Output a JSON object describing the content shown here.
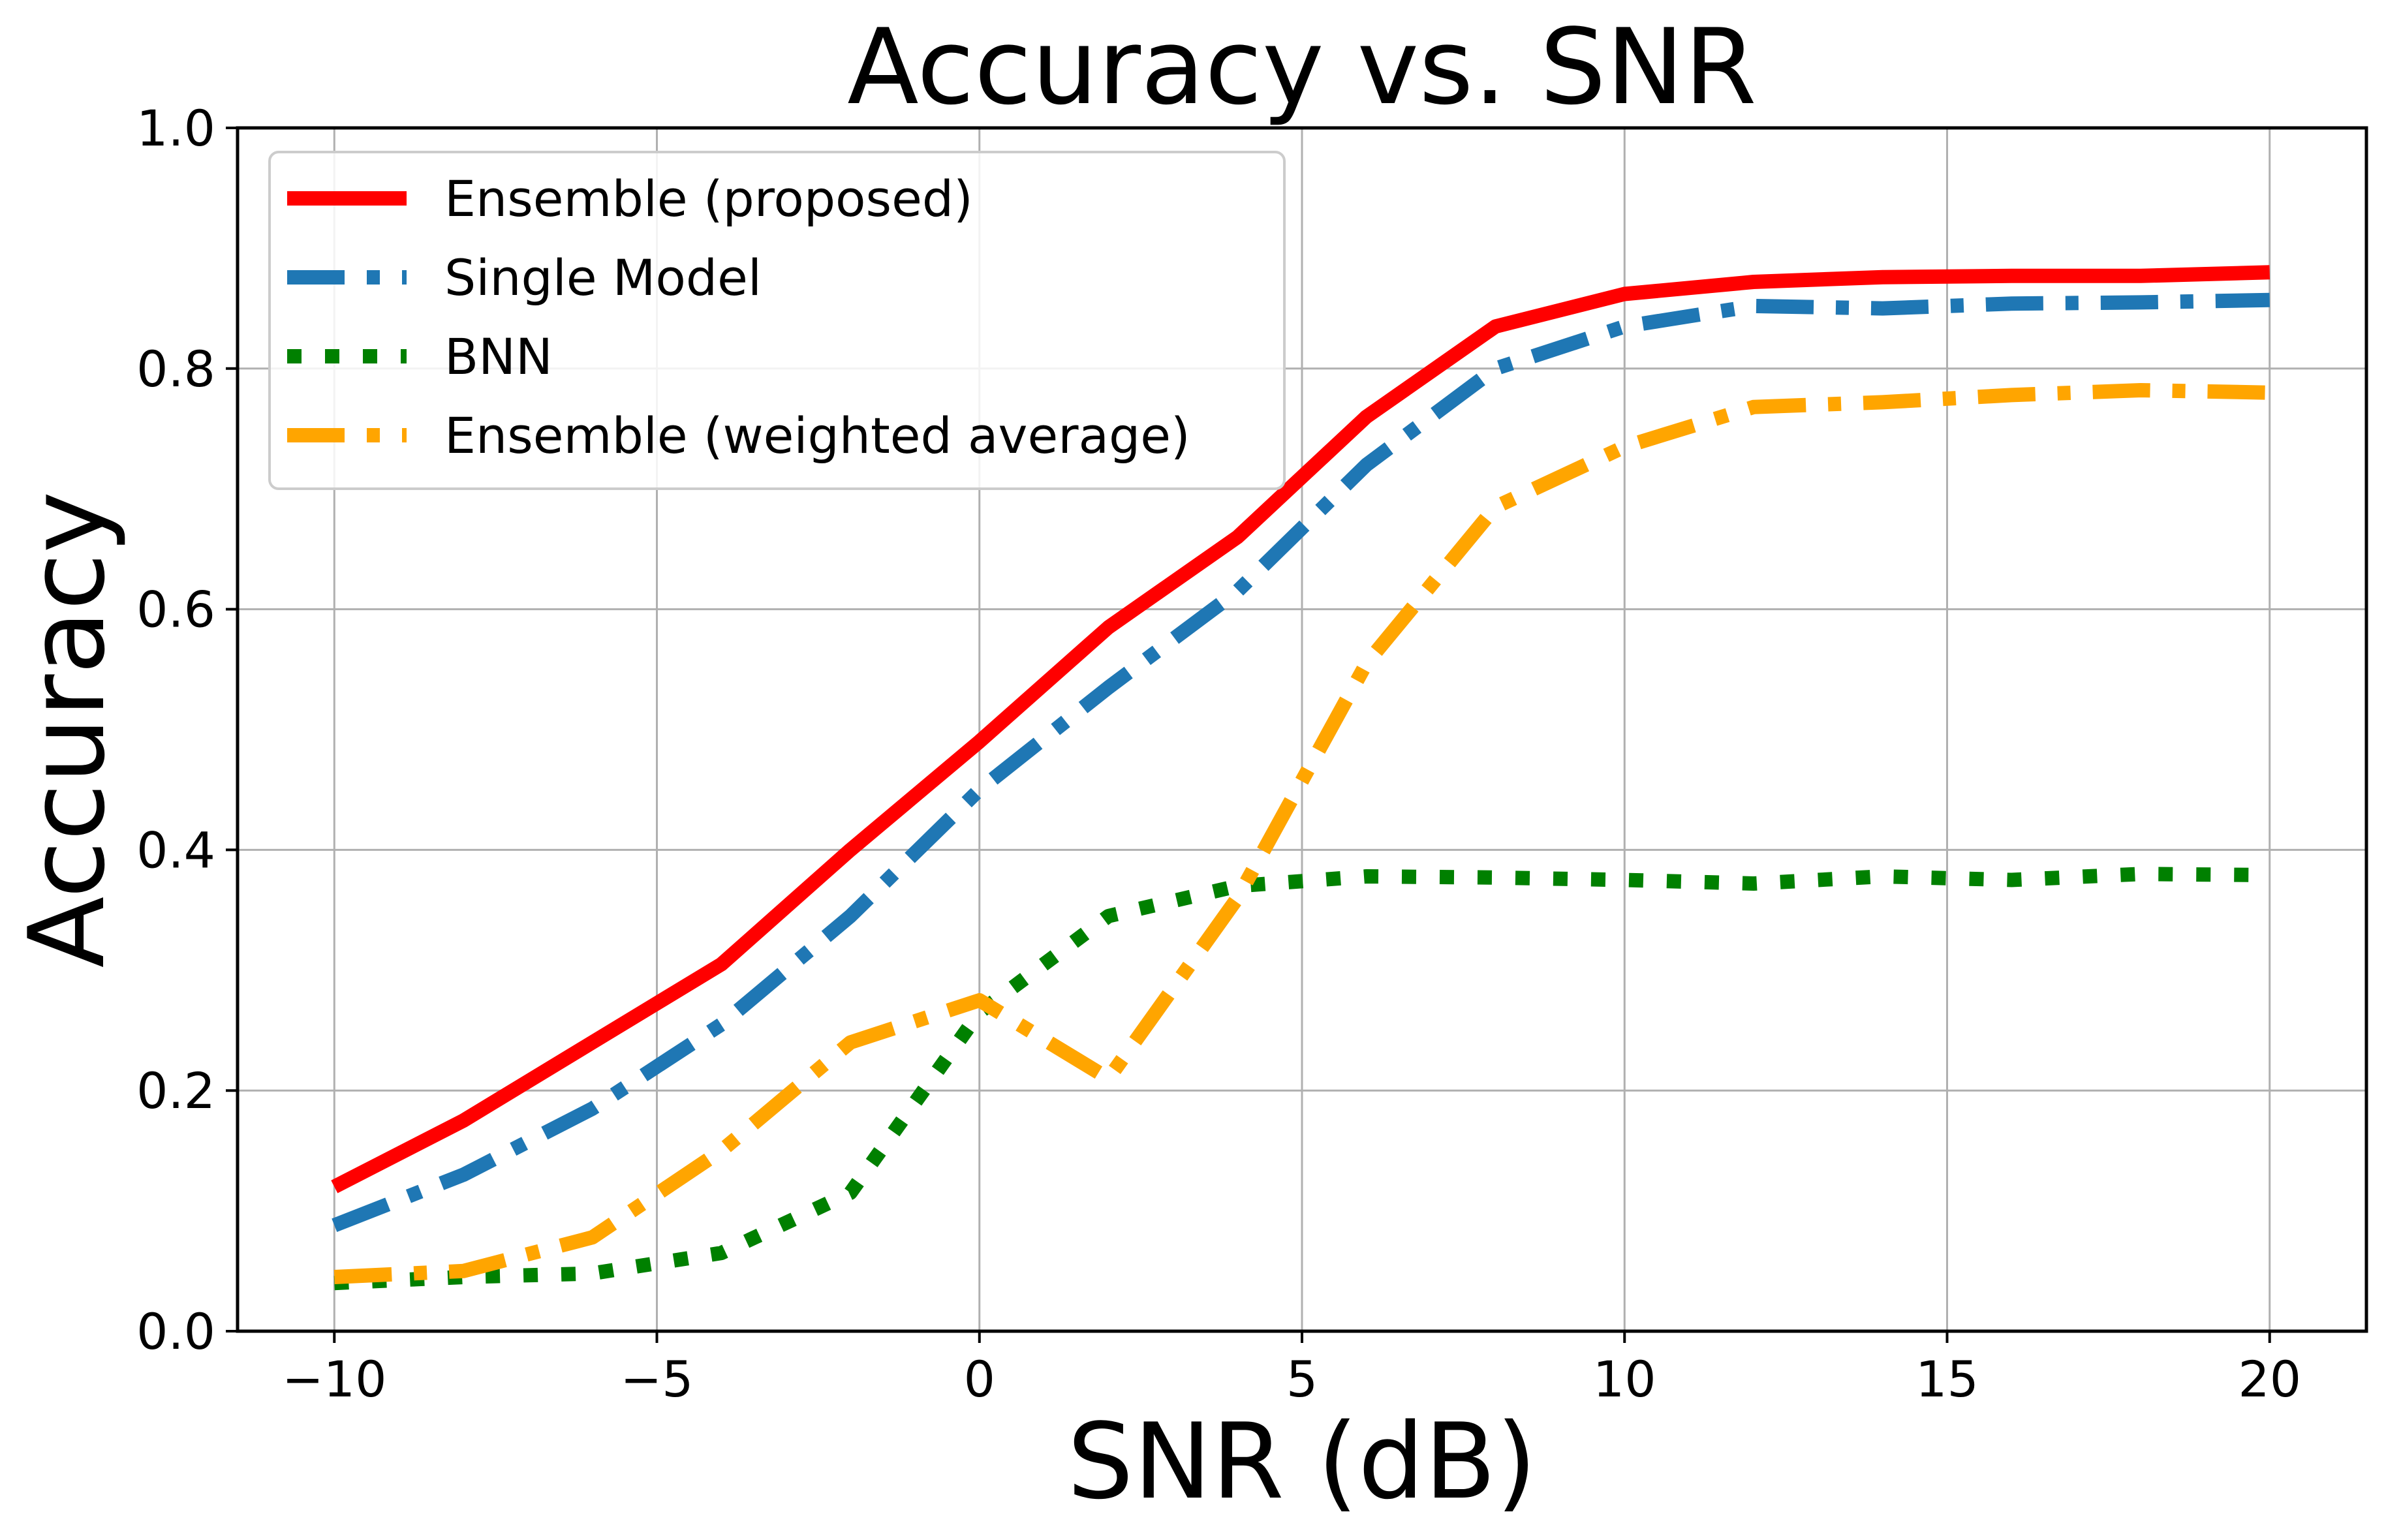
{
  "chart_data": {
    "type": "line",
    "title": "Accuracy vs. SNR",
    "xlabel": "SNR (dB)",
    "ylabel": "Accuracy",
    "xlim": [
      -11.5,
      21.5
    ],
    "ylim": [
      0.0,
      1.0
    ],
    "grid": true,
    "legend_position": "top-left",
    "x_ticks": [
      -10,
      -5,
      0,
      5,
      10,
      15,
      20
    ],
    "x_tick_labels": [
      "−10",
      "−5",
      "0",
      "5",
      "10",
      "15",
      "20"
    ],
    "y_ticks": [
      0.0,
      0.2,
      0.4,
      0.6,
      0.8,
      1.0
    ],
    "y_tick_labels": [
      "0.0",
      "0.2",
      "0.4",
      "0.6",
      "0.8",
      "1.0"
    ],
    "x": [
      -10,
      -8,
      -6,
      -4,
      -2,
      0,
      2,
      4,
      6,
      8,
      10,
      12,
      14,
      16,
      18,
      20
    ],
    "series": [
      {
        "name": "Ensemble (proposed)",
        "color": "#ff0000",
        "style": "solid",
        "values": [
          0.12,
          0.175,
          0.24,
          0.305,
          0.4,
          0.49,
          0.585,
          0.66,
          0.76,
          0.835,
          0.862,
          0.872,
          0.876,
          0.877,
          0.877,
          0.88
        ]
      },
      {
        "name": "Single Model",
        "color": "#1f77b4",
        "style": "dashdot",
        "values": [
          0.088,
          0.13,
          0.185,
          0.255,
          0.345,
          0.45,
          0.535,
          0.615,
          0.72,
          0.8,
          0.835,
          0.852,
          0.85,
          0.854,
          0.855,
          0.857
        ]
      },
      {
        "name": "BNN",
        "color": "#008000",
        "style": "dotted",
        "values": [
          0.04,
          0.045,
          0.048,
          0.065,
          0.115,
          0.265,
          0.345,
          0.37,
          0.378,
          0.377,
          0.375,
          0.372,
          0.378,
          0.375,
          0.38,
          0.379
        ]
      },
      {
        "name": "Ensemble (weighted average)",
        "color": "#ffa500",
        "style": "dashdot",
        "values": [
          0.045,
          0.05,
          0.078,
          0.15,
          0.24,
          0.275,
          0.21,
          0.36,
          0.555,
          0.685,
          0.735,
          0.768,
          0.772,
          0.778,
          0.782,
          0.78
        ]
      }
    ]
  }
}
